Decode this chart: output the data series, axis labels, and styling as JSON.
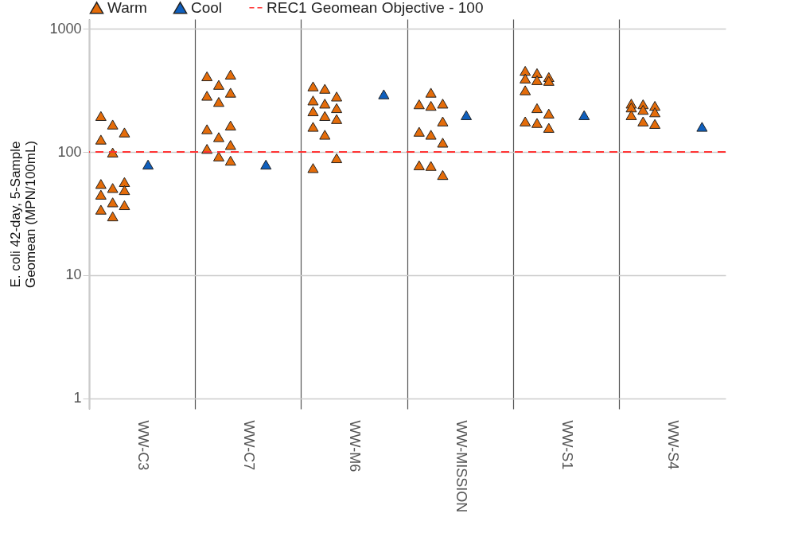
{
  "chart_data": {
    "type": "scatter",
    "ylabel": "E. coli 42-day, 5-Sample\nGeomean (MPN/100mL)",
    "categories": [
      "WW-C3",
      "WW-C7",
      "WW-M6",
      "WW-MISSION",
      "WW-S1",
      "WW-S4"
    ],
    "log": "y",
    "ylim": [
      0.82,
      1200
    ],
    "yticks": [
      1,
      10,
      100,
      1000
    ],
    "grid": true,
    "legend": "top",
    "marker": "triangle",
    "series": [
      {
        "name": "Warm",
        "color": "#e46c0a",
        "x": [
          "WW-C3",
          "WW-C3",
          "WW-C3",
          "WW-C3",
          "WW-C3",
          "WW-C3",
          "WW-C3",
          "WW-C3",
          "WW-C3",
          "WW-C3",
          "WW-C3",
          "WW-C3",
          "WW-C3",
          "WW-C3",
          "WW-C7",
          "WW-C7",
          "WW-C7",
          "WW-C7",
          "WW-C7",
          "WW-C7",
          "WW-C7",
          "WW-C7",
          "WW-C7",
          "WW-C7",
          "WW-C7",
          "WW-C7",
          "WW-C7",
          "WW-M6",
          "WW-M6",
          "WW-M6",
          "WW-M6",
          "WW-M6",
          "WW-M6",
          "WW-M6",
          "WW-M6",
          "WW-M6",
          "WW-M6",
          "WW-M6",
          "WW-M6",
          "WW-M6",
          "WW-MISSION",
          "WW-MISSION",
          "WW-MISSION",
          "WW-MISSION",
          "WW-MISSION",
          "WW-MISSION",
          "WW-MISSION",
          "WW-MISSION",
          "WW-MISSION",
          "WW-MISSION",
          "WW-MISSION",
          "WW-S1",
          "WW-S1",
          "WW-S1",
          "WW-S1",
          "WW-S1",
          "WW-S1",
          "WW-S1",
          "WW-S1",
          "WW-S1",
          "WW-S1",
          "WW-S1",
          "WW-S1",
          "WW-S4",
          "WW-S4",
          "WW-S4",
          "WW-S4",
          "WW-S4",
          "WW-S4",
          "WW-S4",
          "WW-S4",
          "WW-S4"
        ],
        "values": [
          196,
          167,
          144,
          126,
          99,
          57,
          55,
          51,
          49,
          45,
          39,
          37,
          34,
          30,
          425,
          412,
          351,
          303,
          286,
          255,
          164,
          153,
          132,
          114,
          106,
          92,
          85,
          341,
          326,
          282,
          262,
          247,
          227,
          214,
          196,
          185,
          160,
          138,
          89,
          74,
          303,
          247,
          244,
          237,
          177,
          146,
          138,
          119,
          78,
          77,
          65,
          456,
          437,
          406,
          395,
          383,
          378,
          317,
          227,
          205,
          177,
          172,
          157,
          247,
          244,
          237,
          230,
          220,
          210,
          199,
          177,
          169
        ]
      },
      {
        "name": "Cool",
        "color": "#0f5fbd",
        "x": [
          "WW-C3",
          "WW-C7",
          "WW-M6",
          "WW-MISSION",
          "WW-S1",
          "WW-S4"
        ],
        "values": [
          79,
          79,
          294,
          199,
          199,
          160
        ]
      }
    ],
    "ref_lines": [
      {
        "axis": "y",
        "value": 100,
        "label": "REC1 Geomean Objective - 100",
        "color": "#ff3333",
        "line_style": "dashed"
      }
    ]
  }
}
